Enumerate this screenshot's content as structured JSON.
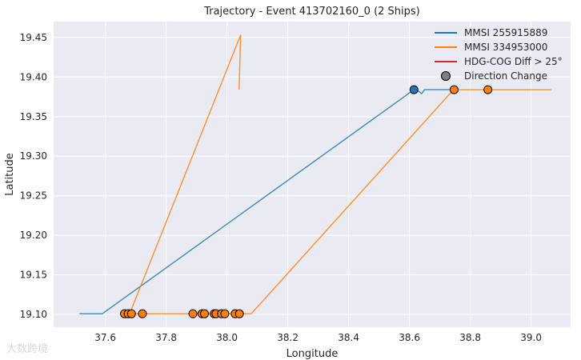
{
  "chart_data": {
    "type": "line",
    "title": "Trajectory - Event 413702160_0 (2 Ships)",
    "xlabel": "Longitude",
    "ylabel": "Latitude",
    "xlim": [
      37.43,
      39.13
    ],
    "ylim": [
      19.084,
      19.47
    ],
    "xticks": [
      37.6,
      37.8,
      38.0,
      38.2,
      38.4,
      38.6,
      38.8,
      39.0
    ],
    "xtick_labels": [
      "37.6",
      "37.8",
      "38.0",
      "38.2",
      "38.4",
      "38.6",
      "38.8",
      "39.0"
    ],
    "yticks": [
      19.1,
      19.15,
      19.2,
      19.25,
      19.3,
      19.35,
      19.4,
      19.45
    ],
    "ytick_labels": [
      "19.10",
      "19.15",
      "19.20",
      "19.25",
      "19.30",
      "19.35",
      "19.40",
      "19.45"
    ],
    "grid": true,
    "legend_position": "top-right",
    "legend": [
      {
        "label": "MMSI 255915889",
        "kind": "line",
        "color": "#1f77b4"
      },
      {
        "label": "MMSI 334953000",
        "kind": "line",
        "color": "#ff7f0e"
      },
      {
        "label": "HDG-COG Diff > 25°",
        "kind": "line",
        "color": "#d62728"
      },
      {
        "label": "Direction Change",
        "kind": "marker",
        "color": "#808080"
      }
    ],
    "series": [
      {
        "name": "MMSI 255915889",
        "color": "#1f77b4",
        "x": [
          37.515,
          37.59,
          38.615,
          38.63,
          38.64,
          38.65,
          38.75
        ],
        "y": [
          19.101,
          19.101,
          19.384,
          19.382,
          19.379,
          19.384,
          19.384
        ],
        "direction_changes": [
          [
            38.615,
            19.384
          ]
        ]
      },
      {
        "name": "MMSI 334953000",
        "color": "#ff7f0e",
        "x": [
          37.665,
          38.08,
          38.745,
          39.065,
          38.745,
          38.08,
          37.68,
          38.045,
          38.04
        ],
        "y": [
          19.101,
          19.101,
          19.384,
          19.384,
          19.384,
          19.101,
          19.101,
          19.453,
          19.384
        ],
        "direction_changes": [
          [
            37.663,
            19.101
          ],
          [
            37.675,
            19.101
          ],
          [
            37.686,
            19.101
          ],
          [
            37.722,
            19.101
          ],
          [
            37.888,
            19.101
          ],
          [
            37.918,
            19.101
          ],
          [
            37.926,
            19.101
          ],
          [
            37.958,
            19.101
          ],
          [
            37.964,
            19.101
          ],
          [
            37.982,
            19.101
          ],
          [
            37.993,
            19.101
          ],
          [
            38.027,
            19.101
          ],
          [
            38.041,
            19.101
          ],
          [
            38.747,
            19.384
          ],
          [
            38.858,
            19.384
          ]
        ]
      }
    ]
  },
  "watermark": "大数跨境"
}
